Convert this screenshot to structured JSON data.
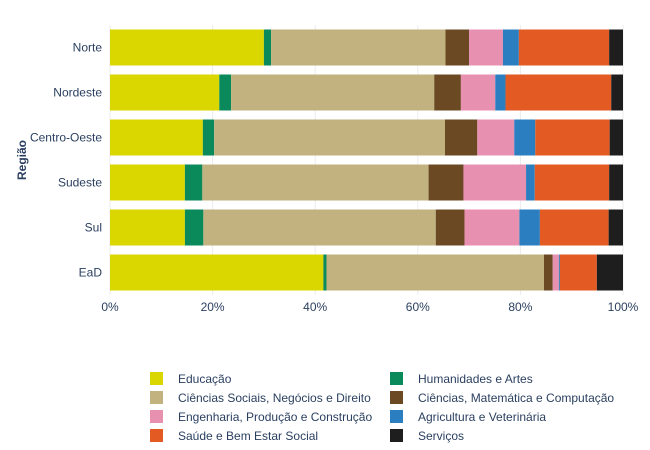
{
  "chart_data": {
    "type": "bar",
    "orientation": "horizontal",
    "stacked": true,
    "ylabel": "Região",
    "xlabel": "",
    "xlim": [
      0,
      100
    ],
    "x_ticks": [
      "0%",
      "20%",
      "40%",
      "60%",
      "80%",
      "100%"
    ],
    "categories": [
      "Norte",
      "Nordeste",
      "Centro-Oeste",
      "Sudeste",
      "Sul",
      "EaD"
    ],
    "series": [
      {
        "name": "Educação",
        "color": "#dad600",
        "values": [
          30.0,
          21.3,
          18.1,
          14.6,
          14.6,
          41.6
        ]
      },
      {
        "name": "Humanidades e Artes",
        "color": "#0a8a5a",
        "values": [
          1.4,
          2.3,
          2.2,
          3.4,
          3.6,
          0.6
        ]
      },
      {
        "name": "Ciências Sociais, Negócios e Direito",
        "color": "#c2b27f",
        "values": [
          34.0,
          39.6,
          45.0,
          44.1,
          45.3,
          42.4
        ]
      },
      {
        "name": "Ciências, Matemática e Computação",
        "color": "#6b4a23",
        "values": [
          4.6,
          5.2,
          6.3,
          6.8,
          5.6,
          1.7
        ]
      },
      {
        "name": "Engenharia, Produção e Construção",
        "color": "#e890b0",
        "values": [
          6.6,
          6.7,
          7.2,
          12.2,
          10.7,
          1.2
        ]
      },
      {
        "name": "Agricultura e Veterinária",
        "color": "#2b7fc0",
        "values": [
          3.1,
          2.0,
          4.1,
          1.7,
          4.0,
          0.2
        ]
      },
      {
        "name": "Saúde e Bem Estar Social",
        "color": "#e35a22",
        "values": [
          17.6,
          20.6,
          14.5,
          14.5,
          13.4,
          7.2
        ]
      },
      {
        "name": "Serviços",
        "color": "#1e1e1e",
        "values": [
          2.7,
          2.3,
          2.6,
          2.7,
          2.8,
          5.1
        ]
      }
    ]
  }
}
